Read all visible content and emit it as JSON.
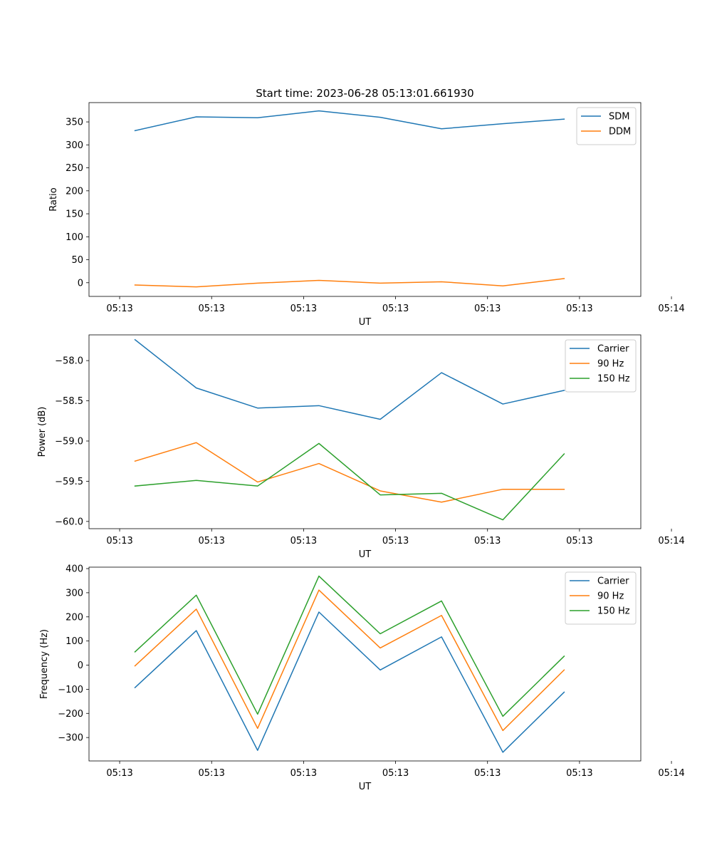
{
  "figure": {
    "title": "Start time: 2023-06-28 05:13:01.661930"
  },
  "colors": {
    "series1": "#1f77b4",
    "series2": "#ff7f0e",
    "series3": "#2ca02c"
  },
  "chart_data": [
    {
      "type": "line",
      "xlabel": "UT",
      "ylabel": "Ratio",
      "xticks": [
        "05:13",
        "05:13",
        "05:13",
        "05:13",
        "05:13",
        "05:13",
        "05:14"
      ],
      "xlim": [
        -0.5,
        8.5
      ],
      "ylim": [
        -29.8,
        392
      ],
      "yticks": [
        0,
        50,
        100,
        150,
        200,
        250,
        300,
        350
      ],
      "ytick_labels": [
        "0",
        "50",
        "100",
        "150",
        "200",
        "250",
        "300",
        "350"
      ],
      "x": [
        0.25,
        1.25,
        2.25,
        3.25,
        4.25,
        5.25,
        6.25,
        7.25
      ],
      "grid": false,
      "legend_position": "upper-right",
      "series": [
        {
          "name": "SDM",
          "color": "#1f77b4",
          "values": [
            331,
            361,
            359,
            374,
            360,
            335,
            346,
            356
          ]
        },
        {
          "name": "DDM",
          "color": "#ff7f0e",
          "values": [
            -5,
            -9,
            -1,
            5,
            -1,
            2,
            -7,
            9
          ]
        }
      ]
    },
    {
      "type": "line",
      "xlabel": "UT",
      "ylabel": "Power (dB)",
      "xticks": [
        "05:13",
        "05:13",
        "05:13",
        "05:13",
        "05:13",
        "05:13",
        "05:14"
      ],
      "xlim": [
        -0.5,
        8.5
      ],
      "ylim": [
        -60.09,
        -57.68
      ],
      "yticks": [
        -60.0,
        -59.5,
        -59.0,
        -58.5,
        -58.0
      ],
      "ytick_labels": [
        "−60.0",
        "−59.5",
        "−59.0",
        "−58.5",
        "−58.0"
      ],
      "x": [
        0.25,
        1.25,
        2.25,
        3.25,
        4.25,
        5.25,
        6.25,
        7.25
      ],
      "grid": false,
      "legend_position": "upper-right",
      "series": [
        {
          "name": "Carrier",
          "color": "#1f77b4",
          "values": [
            -57.74,
            -58.34,
            -58.59,
            -58.56,
            -58.73,
            -58.15,
            -58.54,
            -58.37
          ]
        },
        {
          "name": "90 Hz",
          "color": "#ff7f0e",
          "values": [
            -59.25,
            -59.02,
            -59.51,
            -59.28,
            -59.62,
            -59.76,
            -59.6,
            -59.6
          ]
        },
        {
          "name": "150 Hz",
          "color": "#2ca02c",
          "values": [
            -59.56,
            -59.49,
            -59.56,
            -59.03,
            -59.67,
            -59.65,
            -59.98,
            -59.16
          ]
        }
      ]
    },
    {
      "type": "line",
      "xlabel": "UT",
      "ylabel": "Frequency (Hz)",
      "xticks": [
        "05:13",
        "05:13",
        "05:13",
        "05:13",
        "05:13",
        "05:13",
        "05:14"
      ],
      "xlim": [
        -0.5,
        8.5
      ],
      "ylim": [
        -397,
        406
      ],
      "yticks": [
        -300,
        -200,
        -100,
        0,
        100,
        200,
        300,
        400
      ],
      "ytick_labels": [
        "−300",
        "−200",
        "−100",
        "0",
        "100",
        "200",
        "300",
        "400"
      ],
      "x": [
        0.25,
        1.25,
        2.25,
        3.25,
        4.25,
        5.25,
        6.25,
        7.25
      ],
      "grid": false,
      "legend_position": "upper-right",
      "series": [
        {
          "name": "Carrier",
          "color": "#1f77b4",
          "values": [
            -93,
            143,
            -353,
            220,
            -20,
            117,
            -361,
            -112
          ]
        },
        {
          "name": "90 Hz",
          "color": "#ff7f0e",
          "values": [
            -3,
            232,
            -262,
            311,
            71,
            206,
            -271,
            -20
          ]
        },
        {
          "name": "150 Hz",
          "color": "#2ca02c",
          "values": [
            55,
            290,
            -203,
            369,
            130,
            266,
            -212,
            37
          ]
        }
      ]
    }
  ]
}
